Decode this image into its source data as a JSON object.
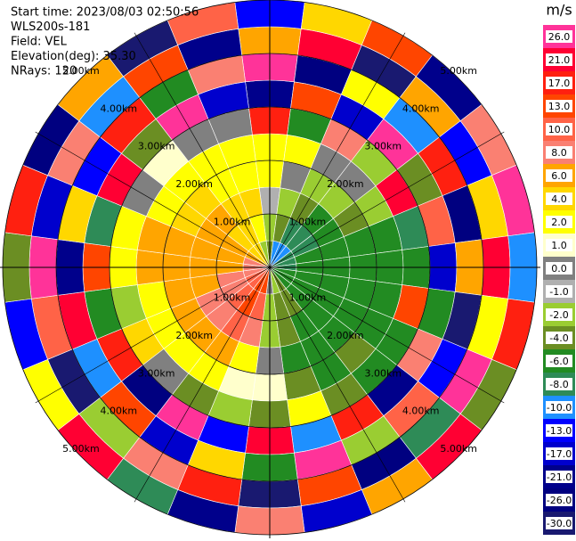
{
  "chart_data": {
    "type": "ppi",
    "annotations": [
      "Start time: 2023/08/03 02:50:56",
      "WLS200s-181",
      "Field: VEL",
      "Elevation(deg): 35.30",
      "NRays: 120"
    ],
    "rlim": [
      0,
      5
    ],
    "range_rings": [
      {
        "value": 1,
        "label": "1.00km"
      },
      {
        "value": 2,
        "label": "2.00km"
      },
      {
        "value": 3,
        "label": "3.00km"
      },
      {
        "value": 4,
        "label": "4.00km"
      },
      {
        "value": 5,
        "label": "5.00km"
      }
    ],
    "values": [
      [
        -4,
        -2,
        -1,
        2,
        2,
        17,
        -21,
        26,
        6,
        -13
      ],
      [
        -10,
        -4,
        -2,
        0,
        2,
        -6,
        13,
        -26,
        21,
        4
      ],
      [
        -10,
        -8,
        -4,
        -2,
        0,
        8,
        -17,
        2,
        -30,
        13
      ],
      [
        -10,
        -8,
        -6,
        -2,
        0,
        -2,
        26,
        -10,
        6,
        -21
      ],
      [
        -8,
        -8,
        -6,
        -4,
        -2,
        21,
        -4,
        17,
        -13,
        8
      ],
      [
        -8,
        -6,
        -6,
        -6,
        -6,
        -8,
        10,
        -26,
        4,
        26
      ],
      [
        -8,
        -6,
        -6,
        -6,
        -6,
        -6,
        -17,
        6,
        21,
        -10
      ],
      [
        -6,
        -6,
        -6,
        -6,
        -6,
        13,
        -6,
        -30,
        2,
        17
      ],
      [
        -6,
        -6,
        -6,
        -6,
        -6,
        -6,
        8,
        -13,
        26,
        -4
      ],
      [
        -6,
        -6,
        -6,
        -6,
        -4,
        -6,
        -21,
        10,
        -8,
        21
      ],
      [
        -4,
        -4,
        -6,
        -6,
        -6,
        -4,
        17,
        -2,
        -26,
        6
      ],
      [
        -2,
        -4,
        -4,
        -6,
        -4,
        2,
        -10,
        26,
        13,
        -17
      ],
      [
        0,
        -2,
        -2,
        0,
        1,
        -4,
        21,
        -6,
        -30,
        8
      ],
      [
        13,
        10,
        8,
        2,
        1,
        -2,
        -13,
        4,
        17,
        -21
      ],
      [
        13,
        13,
        10,
        6,
        2,
        -4,
        26,
        -17,
        8,
        -8
      ],
      [
        10,
        10,
        8,
        6,
        2,
        0,
        -26,
        13,
        -2,
        21
      ],
      [
        10,
        8,
        8,
        6,
        2,
        4,
        17,
        -10,
        -30,
        2
      ],
      [
        8,
        8,
        6,
        6,
        2,
        -2,
        -6,
        21,
        10,
        -13
      ],
      [
        8,
        6,
        6,
        6,
        6,
        2,
        13,
        -21,
        26,
        -4
      ],
      [
        8,
        6,
        6,
        6,
        6,
        2,
        -8,
        4,
        -17,
        17
      ],
      [
        6,
        6,
        6,
        4,
        2,
        0,
        21,
        -13,
        8,
        -26
      ],
      [
        4,
        4,
        6,
        4,
        2,
        1,
        -4,
        17,
        -10,
        6
      ],
      [
        4,
        4,
        4,
        2,
        2,
        0,
        26,
        -6,
        13,
        -30
      ],
      [
        -2,
        2,
        4,
        2,
        2,
        0,
        -17,
        8,
        -21,
        10
      ]
    ],
    "colorbar": {
      "title": "m/s",
      "ticks": [
        {
          "value": 26,
          "label": "26.0"
        },
        {
          "value": 21,
          "label": "21.0"
        },
        {
          "value": 17,
          "label": "17.0"
        },
        {
          "value": 13,
          "label": "13.0"
        },
        {
          "value": 10,
          "label": "10.0"
        },
        {
          "value": 8,
          "label": "8.0"
        },
        {
          "value": 6,
          "label": "6.0"
        },
        {
          "value": 4,
          "label": "4.0"
        },
        {
          "value": 2,
          "label": "2.0"
        },
        {
          "value": 1,
          "label": "1.0"
        },
        {
          "value": 0,
          "label": "0.0"
        },
        {
          "value": -1,
          "label": "-1.0"
        },
        {
          "value": -2,
          "label": "-2.0"
        },
        {
          "value": -4,
          "label": "-4.0"
        },
        {
          "value": -6,
          "label": "-6.0"
        },
        {
          "value": -8,
          "label": "-8.0"
        },
        {
          "value": -10,
          "label": "-10.0"
        },
        {
          "value": -13,
          "label": "-13.0"
        },
        {
          "value": -17,
          "label": "-17.0"
        },
        {
          "value": -21,
          "label": "-21.0"
        },
        {
          "value": -26,
          "label": "-26.0"
        },
        {
          "value": -30,
          "label": "-30.0"
        }
      ],
      "colors": [
        "#ff3399",
        "#ff0033",
        "#ff2010",
        "#ff4500",
        "#ff6347",
        "#fa8072",
        "#ffa500",
        "#ffd700",
        "#ffff00",
        "#ffffcc",
        "#808080",
        "#b0b0b0",
        "#9acd32",
        "#6b8e23",
        "#228b22",
        "#2e8b57",
        "#1e90ff",
        "#0000ff",
        "#0000cd",
        "#00008b",
        "#000080",
        "#191970"
      ]
    }
  }
}
